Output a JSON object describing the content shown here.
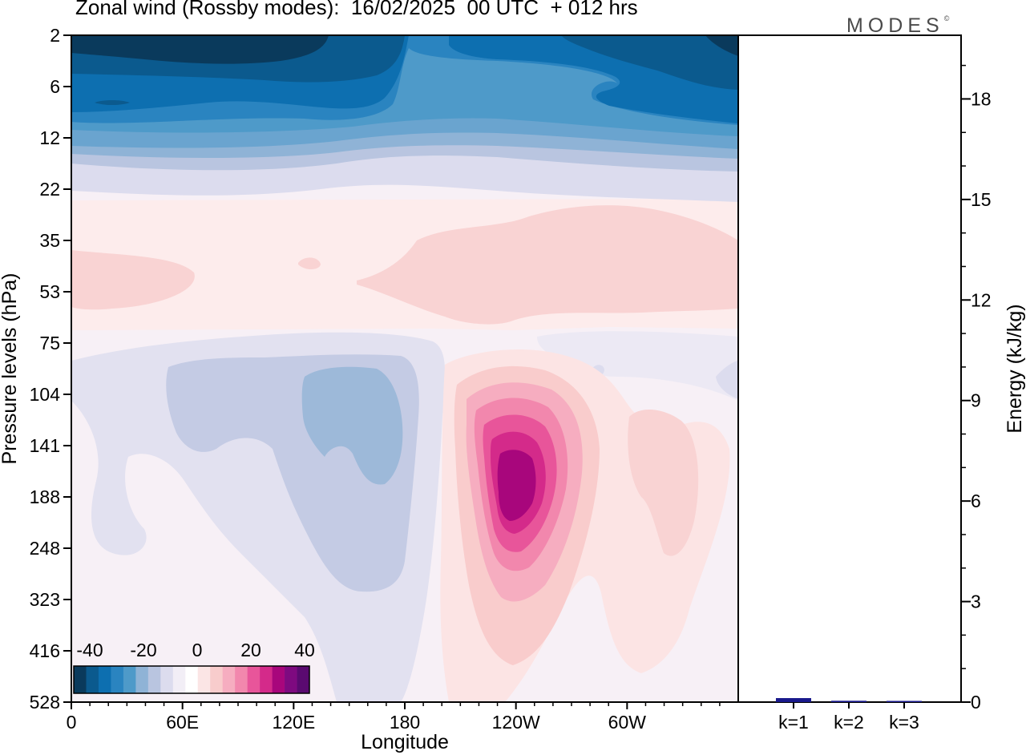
{
  "header": {
    "title": "Zonal wind (Rossby modes):  16/02/2025  00 UTC  + 012 hrs",
    "brand": "MODES",
    "brand_mark": "©"
  },
  "chart_data": [
    {
      "type": "heatmap",
      "title": "Zonal wind (Rossby modes):  16/02/2025  00 UTC  + 012 hrs",
      "xlabel": "Longitude",
      "ylabel": "Pressure levels (hPa)",
      "x_ticks": [
        "0",
        "60E",
        "120E",
        "180",
        "120W",
        "60W"
      ],
      "y_ticks": [
        "2",
        "6",
        "12",
        "22",
        "35",
        "53",
        "75",
        "104",
        "141",
        "188",
        "248",
        "323",
        "416",
        "528"
      ],
      "colorbar": {
        "tick_labels": [
          "-40",
          "-20",
          "0",
          "20",
          "40"
        ],
        "levels": [
          -45,
          -40,
          -35,
          -30,
          -25,
          -20,
          -15,
          -10,
          -5,
          0,
          5,
          10,
          15,
          20,
          25,
          30,
          35,
          40,
          45
        ],
        "colors": [
          "#0a3a5c",
          "#0b5a8e",
          "#0d6fb0",
          "#2a84c0",
          "#4e9ac9",
          "#8fb3d6",
          "#b9c5e0",
          "#dcdcee",
          "#f2eef6",
          "#ffffff",
          "#fbe5e5",
          "#f8cccc",
          "#f6adc0",
          "#f287ad",
          "#e8559a",
          "#d42a8a",
          "#a8067c",
          "#7e0a80",
          "#5a0a70"
        ]
      }
    },
    {
      "type": "bar",
      "categories": [
        "k=1",
        "k=2",
        "k=3"
      ],
      "values": [
        0.12,
        0.04,
        0.03
      ],
      "ylabel": "Energy (kJ/kg)",
      "ylim": [
        0,
        19.9
      ],
      "y_ticks": [
        0,
        3,
        6,
        9,
        12,
        15,
        18
      ],
      "colors": [
        "#1a1a8c",
        "#1a1a8c",
        "#1a1a8c"
      ]
    }
  ]
}
